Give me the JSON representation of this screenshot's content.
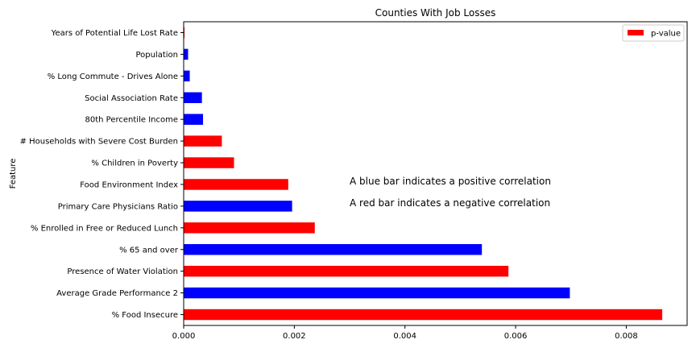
{
  "chart_data": {
    "type": "bar",
    "orientation": "horizontal",
    "title": "Counties With Job Losses",
    "ylabel": "Feature",
    "xlabel": "",
    "xlim": [
      0,
      0.0091
    ],
    "xticks": [
      0.0,
      0.002,
      0.004,
      0.006,
      0.008
    ],
    "xtick_labels": [
      "0.000",
      "0.002",
      "0.004",
      "0.006",
      "0.008"
    ],
    "categories": [
      "% Food Insecure",
      "Average Grade Performance 2",
      "Presence of Water Violation",
      "% 65 and over",
      "% Enrolled in Free or Reduced Lunch",
      "Primary Care Physicians Ratio",
      "Food Environment Index",
      "% Children in Poverty",
      "# Households with Severe Cost Burden",
      "80th Percentile Income",
      "Social Association Rate",
      "% Long Commute - Drives Alone",
      "Population",
      "Years of Potential Life Lost Rate"
    ],
    "series": [
      {
        "name": "p-value",
        "values": [
          0.00865,
          0.00698,
          0.00587,
          0.00539,
          0.00237,
          0.00196,
          0.00189,
          0.00091,
          0.00069,
          0.00035,
          0.00033,
          0.00011,
          8e-05,
          1.5e-05
        ],
        "bar_colors": [
          "red",
          "blue",
          "red",
          "blue",
          "red",
          "blue",
          "red",
          "red",
          "red",
          "blue",
          "blue",
          "blue",
          "blue",
          "red"
        ]
      }
    ],
    "legend": {
      "position": "top-right",
      "label": "p-value",
      "swatch_color": "#ff0000"
    },
    "colors": {
      "red": "#ff0000",
      "blue": "#0000ff"
    },
    "annotations": [
      "A blue bar indicates a positive correlation",
      "A red bar indicates a negative correlation"
    ],
    "grid": false
  }
}
